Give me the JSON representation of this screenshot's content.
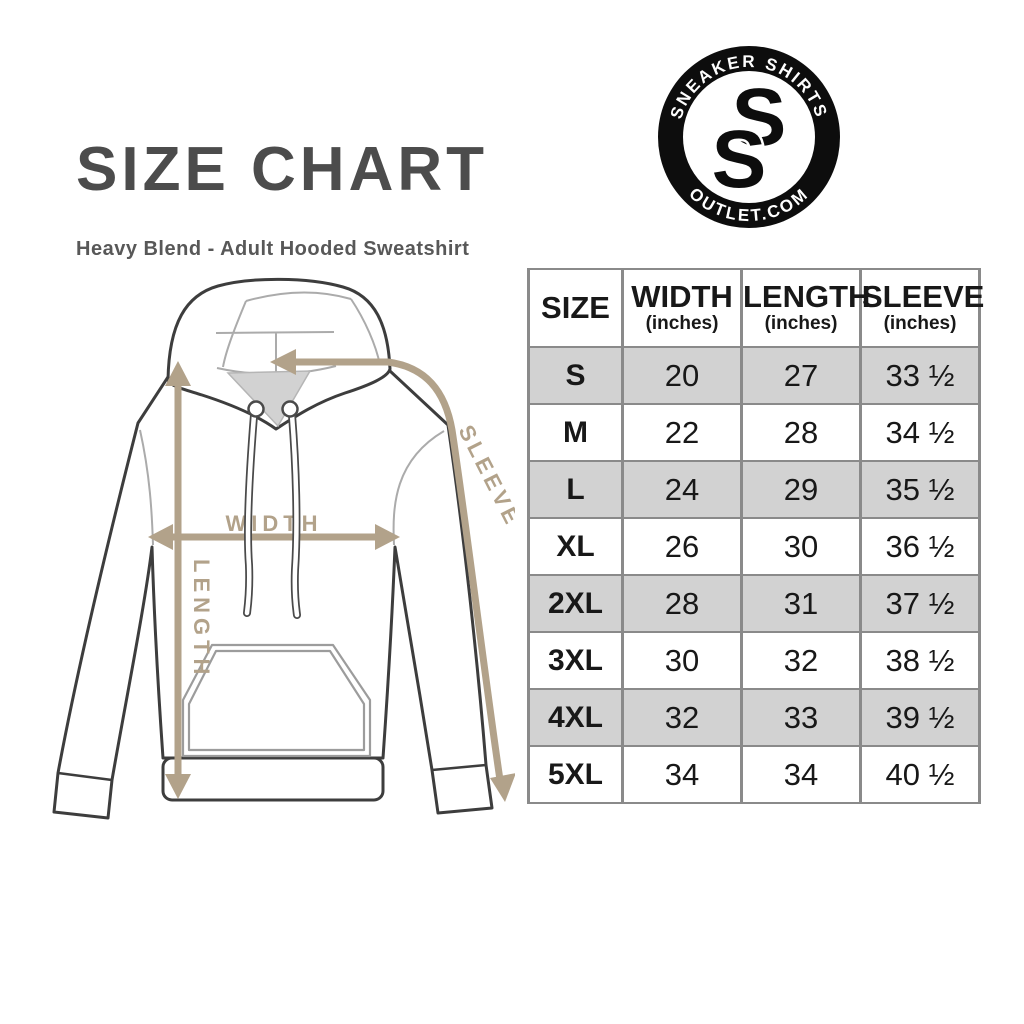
{
  "header": {
    "title": "SIZE CHART",
    "subtitle": "Heavy Blend - Adult Hooded Sweatshirt"
  },
  "logo": {
    "top_text": "SNEAKER SHIRTS",
    "bottom_text": "OUTLET.COM",
    "monogram_letter_1": "S",
    "monogram_letter_2": "S",
    "ring_color": "#0d0d0d",
    "text_color": "#ffffff"
  },
  "diagram": {
    "labels": {
      "width": "WIDTH",
      "length": "LENGTH",
      "sleeve": "SLEEVE"
    },
    "arrow_color": "#b2a28a",
    "outline_color": "#3d3d3d",
    "seam_color": "#ababab"
  },
  "size_table": {
    "columns": [
      {
        "label": "SIZE",
        "sublabel": ""
      },
      {
        "label": "WIDTH",
        "sublabel": "(inches)"
      },
      {
        "label": "LENGTH",
        "sublabel": "(inches)"
      },
      {
        "label": "SLEEVE",
        "sublabel": "(inches)"
      }
    ],
    "rows": [
      {
        "size": "S",
        "width": "20",
        "length": "27",
        "sleeve": "33 ½"
      },
      {
        "size": "M",
        "width": "22",
        "length": "28",
        "sleeve": "34 ½"
      },
      {
        "size": "L",
        "width": "24",
        "length": "29",
        "sleeve": "35 ½"
      },
      {
        "size": "XL",
        "width": "26",
        "length": "30",
        "sleeve": "36 ½"
      },
      {
        "size": "2XL",
        "width": "28",
        "length": "31",
        "sleeve": "37 ½"
      },
      {
        "size": "3XL",
        "width": "30",
        "length": "32",
        "sleeve": "38 ½"
      },
      {
        "size": "4XL",
        "width": "32",
        "length": "33",
        "sleeve": "39 ½"
      },
      {
        "size": "5XL",
        "width": "34",
        "length": "34",
        "sleeve": "40 ½"
      }
    ],
    "stripe_color": "#d2d2d2",
    "border_color": "#8a8a8a"
  }
}
